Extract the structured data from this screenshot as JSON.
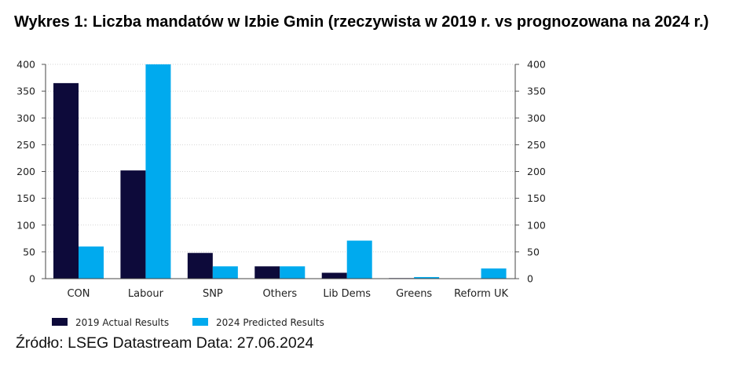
{
  "title": "Wykres 1: Liczba mandatów w Izbie Gmin (rzeczywista w 2019 r. vs prognozowana na 2024 r.)",
  "source": "Źródło: LSEG Datastream Data: 27.06.2024",
  "chart_data": {
    "type": "bar",
    "categories": [
      "CON",
      "Labour",
      "SNP",
      "Others",
      "Lib Dems",
      "Greens",
      "Reform UK"
    ],
    "series": [
      {
        "name": "2019 Actual Results",
        "color": "#0d0a3a",
        "values": [
          365,
          202,
          48,
          23,
          11,
          1,
          0
        ]
      },
      {
        "name": "2024 Predicted Results",
        "color": "#00aaee",
        "values": [
          60,
          400,
          23,
          23,
          71,
          3,
          19
        ]
      }
    ],
    "ylim": [
      0,
      400
    ],
    "yticks": [
      0,
      50,
      100,
      150,
      200,
      250,
      300,
      350,
      400
    ],
    "right_axis_ticks": [
      0,
      50,
      100,
      150,
      200,
      250,
      300,
      350,
      400
    ],
    "grid": true,
    "legend_position": "bottom-left"
  }
}
